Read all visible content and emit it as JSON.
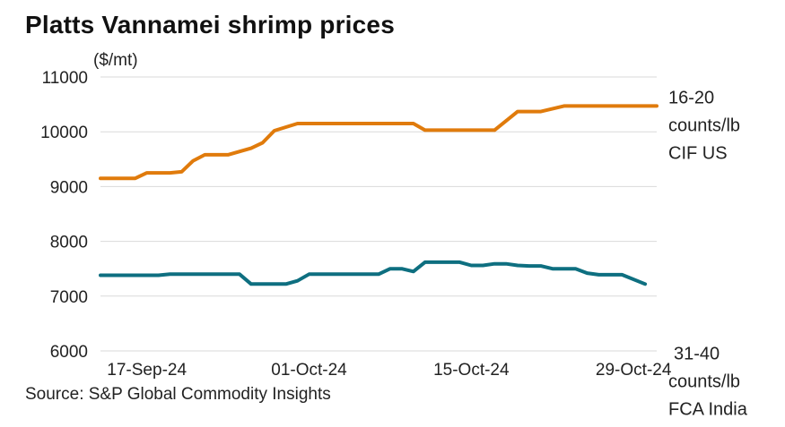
{
  "title": "Platts Vannamei shrimp prices",
  "unit_label": "($/mt)",
  "source": "Source: S&P Global Commodity Insights",
  "chart_data": {
    "type": "line",
    "x_dates": [
      "2024-09-13",
      "2024-09-14",
      "2024-09-15",
      "2024-09-16",
      "2024-09-17",
      "2024-09-18",
      "2024-09-19",
      "2024-09-20",
      "2024-09-21",
      "2024-09-22",
      "2024-09-23",
      "2024-09-24",
      "2024-09-25",
      "2024-09-26",
      "2024-09-27",
      "2024-09-28",
      "2024-09-29",
      "2024-09-30",
      "2024-10-01",
      "2024-10-02",
      "2024-10-03",
      "2024-10-04",
      "2024-10-05",
      "2024-10-06",
      "2024-10-07",
      "2024-10-08",
      "2024-10-09",
      "2024-10-10",
      "2024-10-11",
      "2024-10-12",
      "2024-10-13",
      "2024-10-14",
      "2024-10-15",
      "2024-10-16",
      "2024-10-17",
      "2024-10-18",
      "2024-10-19",
      "2024-10-20",
      "2024-10-21",
      "2024-10-22",
      "2024-10-23",
      "2024-10-24",
      "2024-10-25",
      "2024-10-26",
      "2024-10-27",
      "2024-10-28",
      "2024-10-29",
      "2024-10-30",
      "2024-10-31"
    ],
    "series": [
      {
        "name": "16-20 counts/lb CIF US",
        "label_lines": [
          "16-20",
          "counts/lb",
          "CIF US"
        ],
        "color": "#e07b0c",
        "points": [
          [
            "2024-09-13",
            9150
          ],
          [
            "2024-09-16",
            9150
          ],
          [
            "2024-09-17",
            9250
          ],
          [
            "2024-09-19",
            9250
          ],
          [
            "2024-09-20",
            9270
          ],
          [
            "2024-09-21",
            9470
          ],
          [
            "2024-09-22",
            9580
          ],
          [
            "2024-09-24",
            9580
          ],
          [
            "2024-09-26",
            9700
          ],
          [
            "2024-09-27",
            9800
          ],
          [
            "2024-09-28",
            10020
          ],
          [
            "2024-09-30",
            10150
          ],
          [
            "2024-10-10",
            10150
          ],
          [
            "2024-10-11",
            10030
          ],
          [
            "2024-10-15",
            10030
          ],
          [
            "2024-10-17",
            10030
          ],
          [
            "2024-10-19",
            10370
          ],
          [
            "2024-10-21",
            10370
          ],
          [
            "2024-10-23",
            10470
          ],
          [
            "2024-10-31",
            10470
          ]
        ]
      },
      {
        "name": "31-40 counts/lb FCA India",
        "label_lines": [
          "31-40",
          "counts/lb",
          "FCA India"
        ],
        "color": "#0e6f80",
        "points": [
          [
            "2024-09-13",
            7380
          ],
          [
            "2024-09-18",
            7380
          ],
          [
            "2024-09-19",
            7400
          ],
          [
            "2024-09-25",
            7400
          ],
          [
            "2024-09-26",
            7220
          ],
          [
            "2024-09-29",
            7220
          ],
          [
            "2024-09-30",
            7280
          ],
          [
            "2024-10-01",
            7400
          ],
          [
            "2024-10-06",
            7400
          ],
          [
            "2024-10-07",
            7400
          ],
          [
            "2024-10-08",
            7500
          ],
          [
            "2024-10-09",
            7500
          ],
          [
            "2024-10-10",
            7450
          ],
          [
            "2024-10-11",
            7620
          ],
          [
            "2024-10-13",
            7620
          ],
          [
            "2024-10-14",
            7620
          ],
          [
            "2024-10-15",
            7560
          ],
          [
            "2024-10-16",
            7560
          ],
          [
            "2024-10-17",
            7590
          ],
          [
            "2024-10-18",
            7590
          ],
          [
            "2024-10-19",
            7560
          ],
          [
            "2024-10-20",
            7550
          ],
          [
            "2024-10-21",
            7550
          ],
          [
            "2024-10-22",
            7500
          ],
          [
            "2024-10-23",
            7500
          ],
          [
            "2024-10-24",
            7500
          ],
          [
            "2024-10-25",
            7420
          ],
          [
            "2024-10-26",
            7390
          ],
          [
            "2024-10-27",
            7390
          ],
          [
            "2024-10-28",
            7390
          ],
          [
            "2024-10-30",
            7220
          ]
        ]
      }
    ],
    "xlabel": "",
    "ylabel": "($/mt)",
    "ylim": [
      6000,
      11000
    ],
    "yticks": [
      6000,
      7000,
      8000,
      9000,
      10000,
      11000
    ],
    "ytick_labels": [
      "6000",
      "7000",
      "8000",
      "9000",
      "10000",
      "11000"
    ],
    "xtick_dates": [
      "2024-09-17",
      "2024-10-01",
      "2024-10-15",
      "2024-10-29"
    ],
    "xtick_labels": [
      "17-Sep-24",
      "01-Oct-24",
      "15-Oct-24",
      "29-Oct-24"
    ],
    "xlim": [
      "2024-09-13",
      "2024-10-31"
    ],
    "grid": "horizontal",
    "legend": "inline-right"
  }
}
